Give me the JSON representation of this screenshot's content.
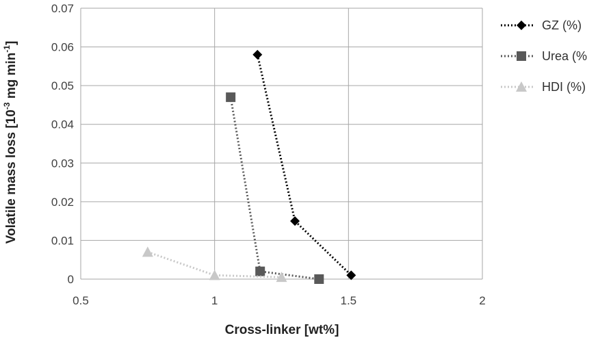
{
  "chart_data": {
    "type": "scatter",
    "xlabel": "Cross-linker [wt%]",
    "ylabel": {
      "text": "Volatile mass loss [10",
      "sup1": "-3",
      "mid": " mg min",
      "sup2": "-1",
      "end": "]"
    },
    "xlim": [
      0.5,
      2
    ],
    "ylim": [
      0,
      0.07
    ],
    "xticks": [
      "0.5",
      "1",
      "1.5",
      "2"
    ],
    "yticks": [
      "0",
      "0.01",
      "0.02",
      "0.03",
      "0.04",
      "0.05",
      "0.06",
      "0.07"
    ],
    "grid": "horizontal",
    "legend_position": "right",
    "series": [
      {
        "name": "GZ (%)",
        "marker": "diamond",
        "color": "#000000",
        "line": "dotted",
        "points": [
          [
            1.16,
            0.058
          ],
          [
            1.3,
            0.015
          ],
          [
            1.51,
            0.001
          ]
        ]
      },
      {
        "name": "Urea (%",
        "marker": "square",
        "color": "#595959",
        "line": "dotted",
        "points": [
          [
            1.06,
            0.047
          ],
          [
            1.17,
            0.002
          ],
          [
            1.39,
            0.0
          ]
        ]
      },
      {
        "name": "HDI (%)",
        "marker": "triangle",
        "color": "#c8c8c8",
        "line": "dotted",
        "points": [
          [
            0.75,
            0.007
          ],
          [
            1.0,
            0.001
          ],
          [
            1.25,
            0.0005
          ]
        ]
      }
    ]
  }
}
